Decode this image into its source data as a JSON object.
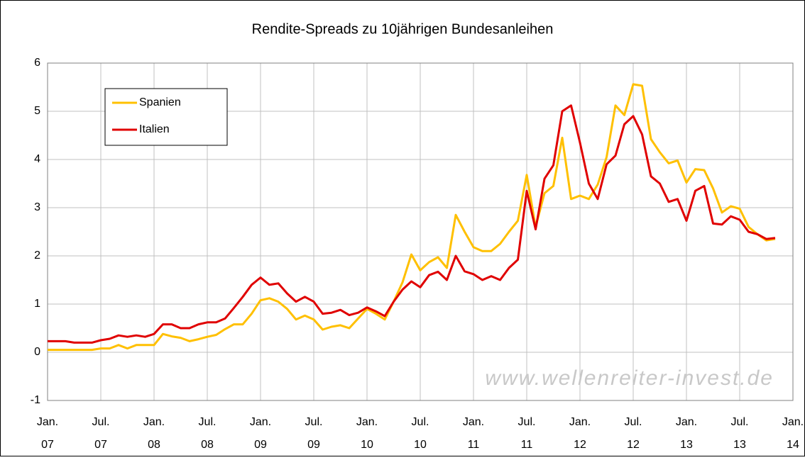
{
  "chart_data": {
    "type": "line",
    "title": "Rendite-Spreads zu 10jährigen Bundesanleihen",
    "annotations": [
      "www.wellenreiter-invest.de"
    ],
    "x": [
      "2007-01",
      "2007-02",
      "2007-03",
      "2007-04",
      "2007-05",
      "2007-06",
      "2007-07",
      "2007-08",
      "2007-09",
      "2007-10",
      "2007-11",
      "2007-12",
      "2008-01",
      "2008-02",
      "2008-03",
      "2008-04",
      "2008-05",
      "2008-06",
      "2008-07",
      "2008-08",
      "2008-09",
      "2008-10",
      "2008-11",
      "2008-12",
      "2009-01",
      "2009-02",
      "2009-03",
      "2009-04",
      "2009-05",
      "2009-06",
      "2009-07",
      "2009-08",
      "2009-09",
      "2009-10",
      "2009-11",
      "2009-12",
      "2010-01",
      "2010-02",
      "2010-03",
      "2010-04",
      "2010-05",
      "2010-06",
      "2010-07",
      "2010-08",
      "2010-09",
      "2010-10",
      "2010-11",
      "2010-12",
      "2011-01",
      "2011-02",
      "2011-03",
      "2011-04",
      "2011-05",
      "2011-06",
      "2011-07",
      "2011-08",
      "2011-09",
      "2011-10",
      "2011-11",
      "2011-12",
      "2012-01",
      "2012-02",
      "2012-03",
      "2012-04",
      "2012-05",
      "2012-06",
      "2012-07",
      "2012-08",
      "2012-09",
      "2012-10",
      "2012-11",
      "2012-12",
      "2013-01",
      "2013-02",
      "2013-03",
      "2013-04",
      "2013-05",
      "2013-06",
      "2013-07",
      "2013-08",
      "2013-09",
      "2013-10",
      "2013-11"
    ],
    "series": [
      {
        "name": "Spanien",
        "color": "#ffc000",
        "values": [
          0.05,
          0.05,
          0.05,
          0.05,
          0.05,
          0.05,
          0.08,
          0.08,
          0.15,
          0.08,
          0.15,
          0.15,
          0.15,
          0.38,
          0.33,
          0.3,
          0.23,
          0.27,
          0.32,
          0.36,
          0.48,
          0.58,
          0.58,
          0.8,
          1.08,
          1.12,
          1.05,
          0.9,
          0.68,
          0.76,
          0.68,
          0.47,
          0.53,
          0.56,
          0.5,
          0.7,
          0.9,
          0.8,
          0.68,
          1.05,
          1.45,
          2.03,
          1.7,
          1.87,
          1.97,
          1.75,
          2.85,
          2.5,
          2.18,
          2.1,
          2.1,
          2.25,
          2.5,
          2.73,
          3.68,
          2.6,
          3.3,
          3.45,
          4.45,
          3.18,
          3.25,
          3.18,
          3.48,
          4.05,
          5.12,
          4.92,
          5.56,
          5.53,
          4.42,
          4.15,
          3.92,
          3.98,
          3.52,
          3.8,
          3.78,
          3.4,
          2.9,
          3.03,
          2.98,
          2.6,
          2.45,
          2.32,
          2.35
        ]
      },
      {
        "name": "Italien",
        "color": "#e00000",
        "values": [
          0.23,
          0.23,
          0.23,
          0.2,
          0.2,
          0.2,
          0.25,
          0.28,
          0.35,
          0.32,
          0.35,
          0.32,
          0.38,
          0.58,
          0.58,
          0.5,
          0.5,
          0.58,
          0.62,
          0.62,
          0.7,
          0.92,
          1.15,
          1.4,
          1.55,
          1.4,
          1.43,
          1.22,
          1.05,
          1.15,
          1.05,
          0.8,
          0.82,
          0.88,
          0.77,
          0.82,
          0.93,
          0.85,
          0.75,
          1.05,
          1.3,
          1.47,
          1.35,
          1.6,
          1.67,
          1.5,
          2.0,
          1.68,
          1.62,
          1.5,
          1.58,
          1.5,
          1.75,
          1.92,
          3.35,
          2.55,
          3.6,
          3.88,
          5.0,
          5.12,
          4.35,
          3.5,
          3.18,
          3.9,
          4.08,
          4.73,
          4.9,
          4.52,
          3.65,
          3.5,
          3.12,
          3.18,
          2.73,
          3.35,
          3.45,
          2.67,
          2.65,
          2.82,
          2.75,
          2.5,
          2.45,
          2.35,
          2.37
        ]
      }
    ],
    "xlim": [
      "2007-01",
      "2014-01"
    ],
    "xticks": [
      {
        "value": "2007-01",
        "label": [
          "Jan.",
          "07"
        ]
      },
      {
        "value": "2007-07",
        "label": [
          "Jul.",
          "07"
        ]
      },
      {
        "value": "2008-01",
        "label": [
          "Jan.",
          "08"
        ]
      },
      {
        "value": "2008-07",
        "label": [
          "Jul.",
          "08"
        ]
      },
      {
        "value": "2009-01",
        "label": [
          "Jan.",
          "09"
        ]
      },
      {
        "value": "2009-07",
        "label": [
          "Jul.",
          "09"
        ]
      },
      {
        "value": "2010-01",
        "label": [
          "Jan.",
          "10"
        ]
      },
      {
        "value": "2010-07",
        "label": [
          "Jul.",
          "10"
        ]
      },
      {
        "value": "2011-01",
        "label": [
          "Jan.",
          "11"
        ]
      },
      {
        "value": "2011-07",
        "label": [
          "Jul.",
          "11"
        ]
      },
      {
        "value": "2012-01",
        "label": [
          "Jan.",
          "12"
        ]
      },
      {
        "value": "2012-07",
        "label": [
          "Jul.",
          "12"
        ]
      },
      {
        "value": "2013-01",
        "label": [
          "Jan.",
          "13"
        ]
      },
      {
        "value": "2013-07",
        "label": [
          "Jul.",
          "13"
        ]
      },
      {
        "value": "2014-01",
        "label": [
          "Jan.",
          "14"
        ]
      }
    ],
    "ylim": [
      -1,
      6
    ],
    "yticks": [
      -1,
      0,
      1,
      2,
      3,
      4,
      5,
      6
    ],
    "grid": true,
    "legend": "upper left"
  }
}
